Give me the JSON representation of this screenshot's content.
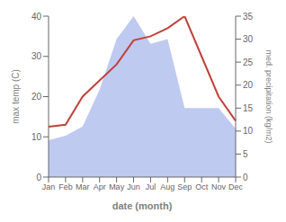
{
  "chart_data": {
    "type": "line",
    "xlabel": "date (month)",
    "ylabel": "max temp (C)",
    "y2label": "med. precipitation (kg/m2)",
    "categories": [
      "Jan",
      "Feb",
      "Mar",
      "Apr",
      "May",
      "Jun",
      "Jul",
      "Aug",
      "Sep",
      "Oct",
      "Nov",
      "Dec"
    ],
    "series": [
      {
        "type": "area",
        "axis": "y2",
        "color": "#b8c4f0",
        "values": [
          8.0,
          9.0,
          11.0,
          19.0,
          30.0,
          35.0,
          29.0,
          30.0,
          15.0,
          15.0,
          15.0,
          10.5
        ]
      },
      {
        "type": "line",
        "color": "#c0413a",
        "values": [
          12.5,
          13.0,
          20.0,
          24.0,
          28.0,
          34.0,
          35.0,
          37.0,
          40.0,
          30.0,
          20.0,
          14.0
        ]
      }
    ],
    "ylim": [
      0,
      40
    ],
    "yticks": [
      0,
      10,
      20,
      30,
      40
    ],
    "y2lim": [
      0,
      35
    ],
    "y2ticks": [
      0,
      5,
      10,
      15,
      20,
      25,
      30,
      35
    ],
    "grid": false
  }
}
